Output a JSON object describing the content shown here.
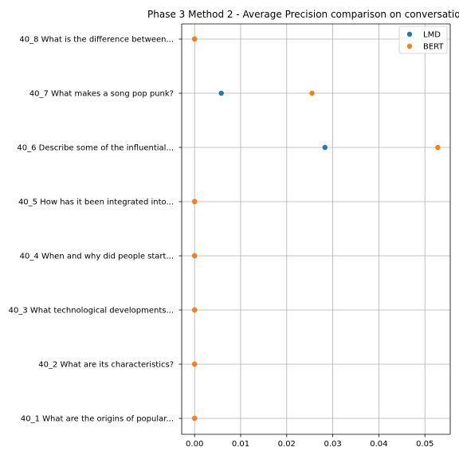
{
  "chart_data": {
    "type": "scatter",
    "title": "Phase 3 Method 2 - Average Precision comparison on conversatio",
    "xlabel": "",
    "ylabel": "",
    "xlim": [
      -0.0028,
      0.0555
    ],
    "x_ticks": [
      0,
      0.01,
      0.02,
      0.03,
      0.04,
      0.05
    ],
    "x_tick_labels": [
      "0.00",
      "0.01",
      "0.02",
      "0.03",
      "0.04",
      "0.05"
    ],
    "categories": [
      "40_1 What are the origins of popular...",
      "40_2 What are its characteristics?",
      "40_3 What technological developments...",
      "40_4 When and why did people start...",
      "40_5 How has it been integrated into...",
      "40_6 Describe some of the influential...",
      "40_7 What makes a song pop punk?",
      "40_8 What is the difference between..."
    ],
    "series": [
      {
        "name": "LMD",
        "color": "#1f77b4",
        "values": [
          0,
          0,
          0,
          0,
          0,
          0.0283,
          0.0058,
          0
        ]
      },
      {
        "name": "BERT",
        "color": "#ff7f0e",
        "values": [
          0,
          0,
          0,
          0,
          0,
          0.0528,
          0.0255,
          0
        ]
      }
    ],
    "grid": true,
    "legend_position": "top-right"
  }
}
